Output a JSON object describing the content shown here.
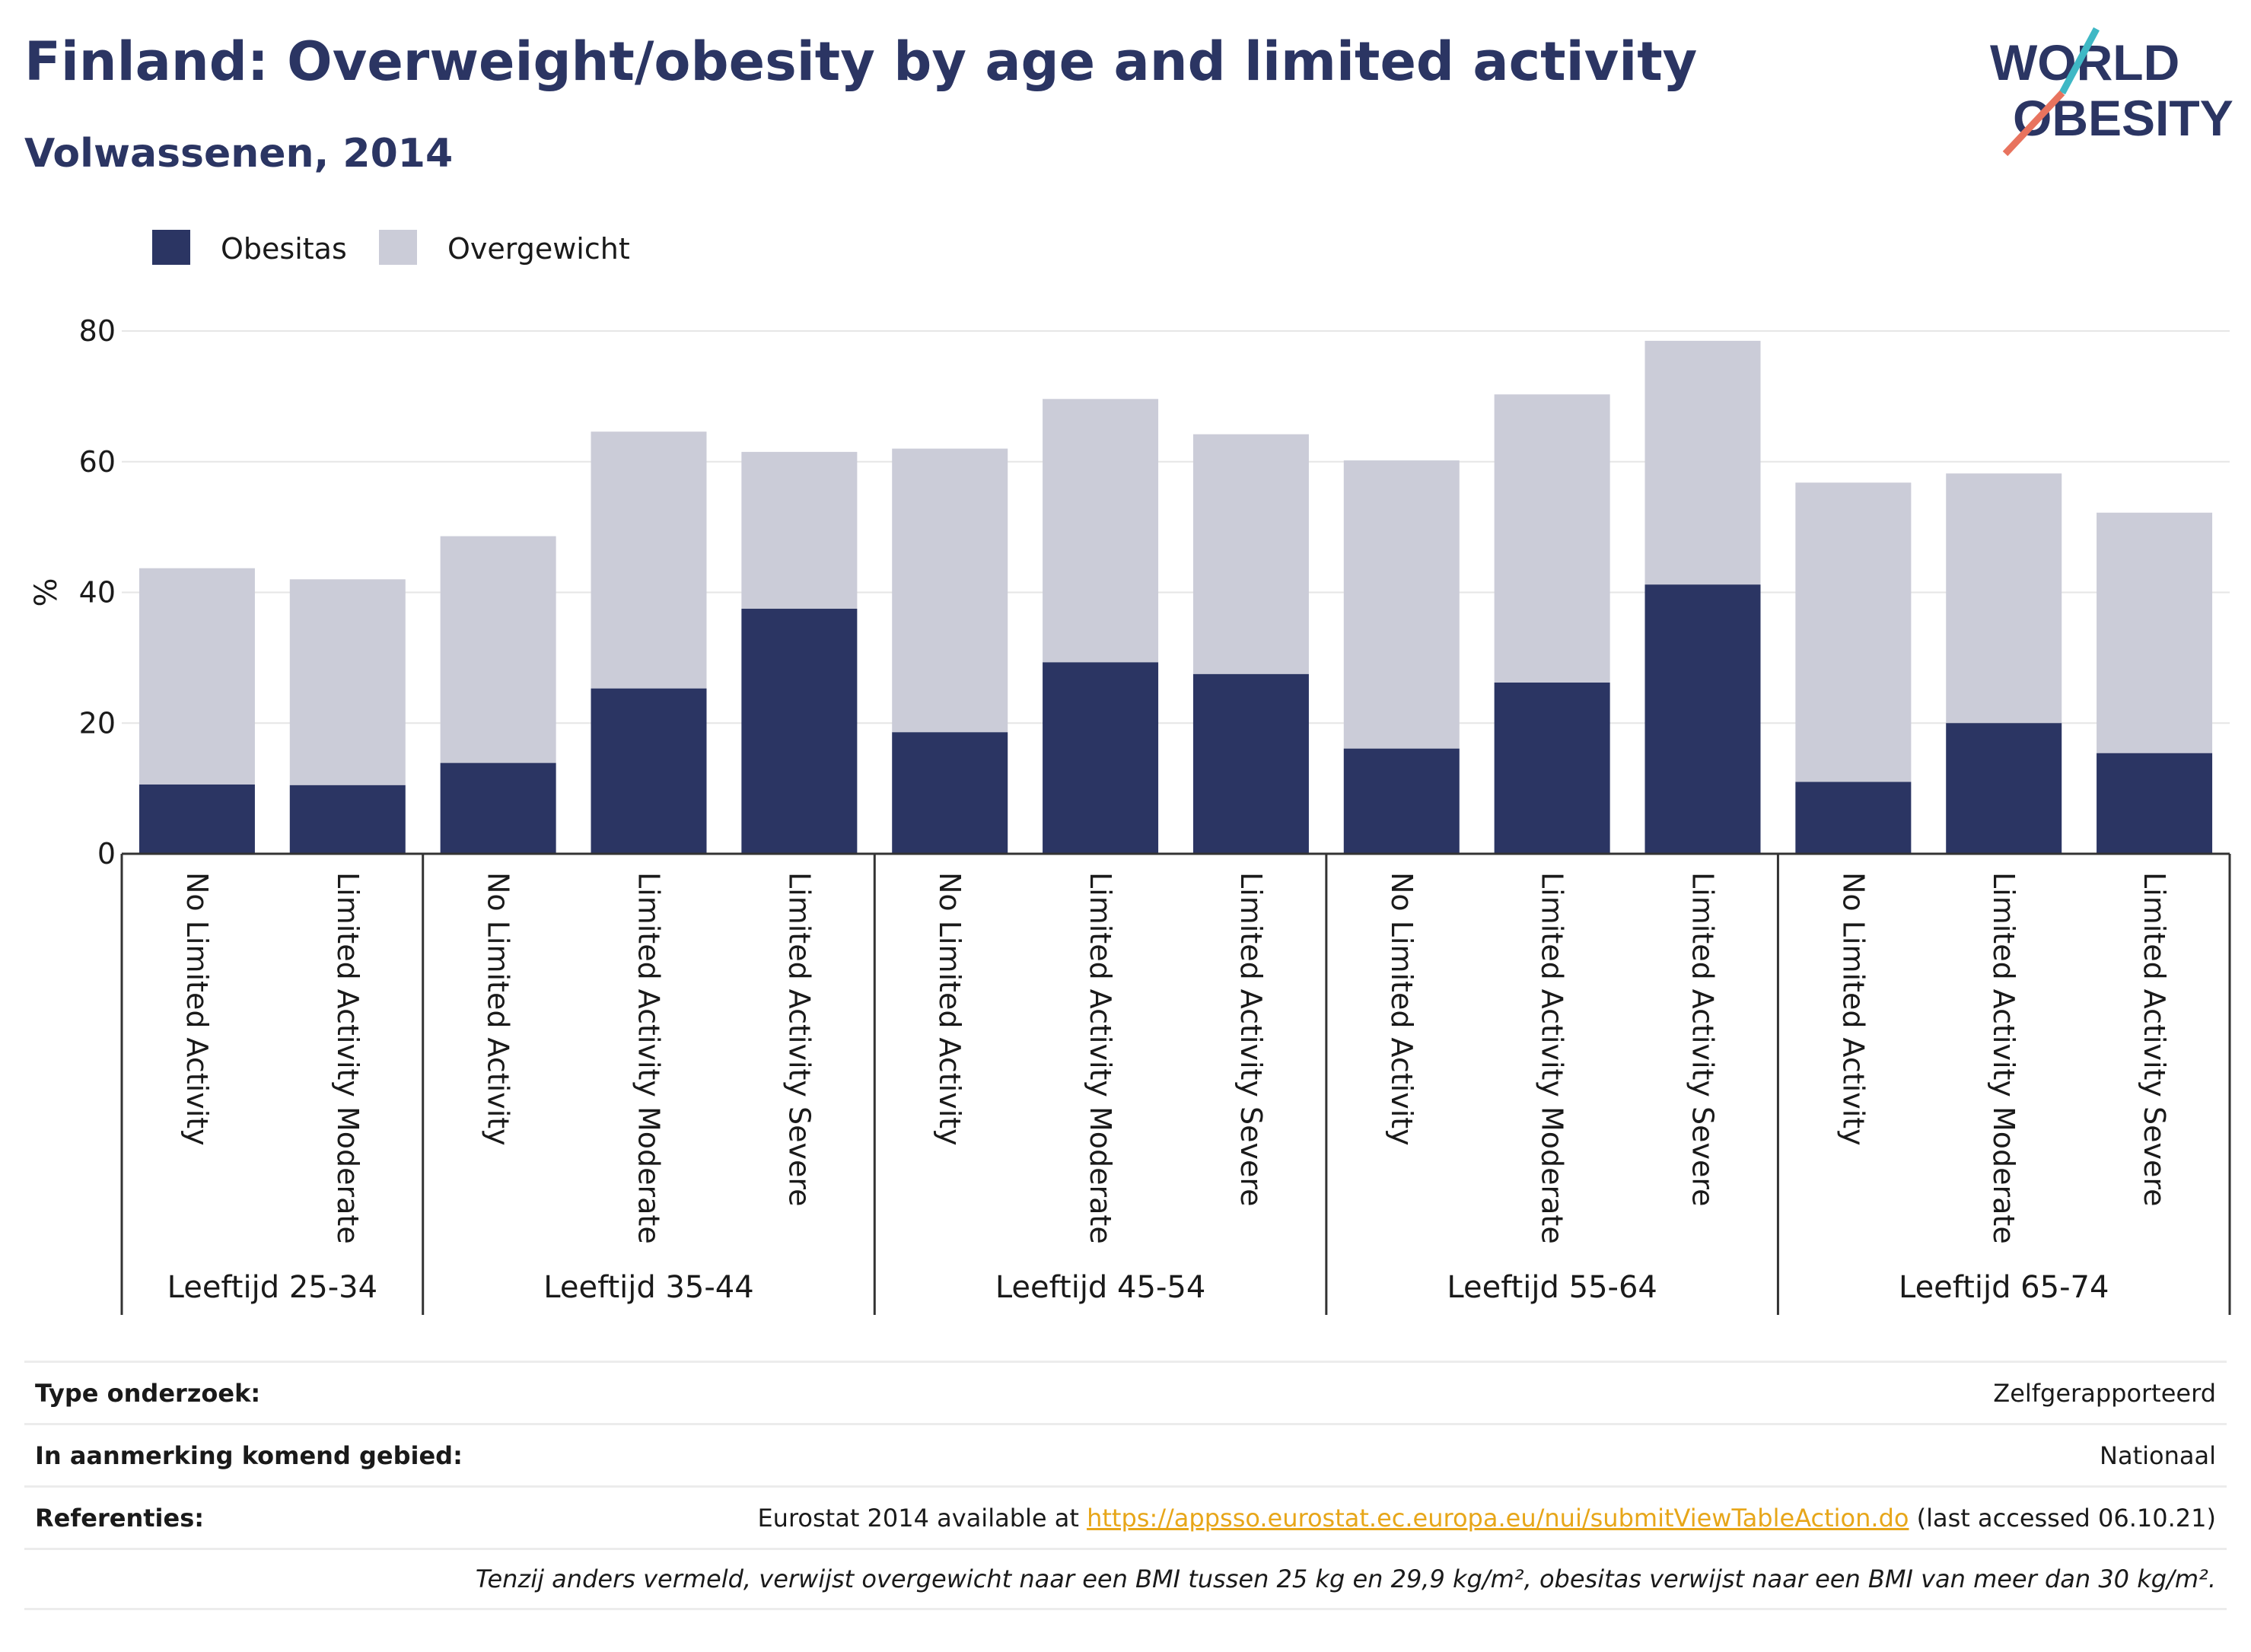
{
  "header": {
    "title": "Finland: Overweight/obesity by age and limited activity",
    "subtitle": "Volwassenen, 2014",
    "logo_line1": "WORLD",
    "logo_line2": "OBESITY"
  },
  "colors": {
    "obesity": "#2b3563",
    "overweight": "#cbccd8",
    "accent_title": "#2b3563",
    "link": "#e7a619",
    "logo_teal": "#3fb8c5",
    "logo_coral": "#e8735e"
  },
  "chart_data": {
    "type": "bar",
    "stacked": true,
    "ylabel": "%",
    "ylim": [
      0,
      80
    ],
    "yticks": [
      0,
      20,
      40,
      60,
      80
    ],
    "grid": true,
    "legend_position": "top-left",
    "groups": [
      {
        "label": "Leeftijd 25-34",
        "categories": [
          "No Limited Activity",
          "Limited Activity Moderate"
        ]
      },
      {
        "label": "Leeftijd 35-44",
        "categories": [
          "No Limited Activity",
          "Limited Activity Moderate",
          "Limited Activity Severe"
        ]
      },
      {
        "label": "Leeftijd 45-54",
        "categories": [
          "No Limited Activity",
          "Limited Activity Moderate",
          "Limited Activity Severe"
        ]
      },
      {
        "label": "Leeftijd 55-64",
        "categories": [
          "No Limited Activity",
          "Limited Activity Moderate",
          "Limited Activity Severe"
        ]
      },
      {
        "label": "Leeftijd 65-74",
        "categories": [
          "No Limited Activity",
          "Limited Activity Moderate",
          "Limited Activity Severe"
        ]
      }
    ],
    "series": [
      {
        "name": "Obesitas",
        "values": [
          10.6,
          10.5,
          13.9,
          25.3,
          37.5,
          18.6,
          29.3,
          27.5,
          16.1,
          26.2,
          41.2,
          11.0,
          20.0,
          15.4
        ]
      },
      {
        "name": "Overgewicht",
        "values": [
          33.1,
          31.5,
          34.7,
          39.3,
          24.0,
          43.4,
          40.3,
          36.7,
          44.1,
          44.1,
          37.3,
          45.8,
          38.2,
          36.8
        ]
      }
    ]
  },
  "info": {
    "survey_type_label": "Type onderzoek:",
    "survey_type_value": "Zelfgerapporteerd",
    "area_label": "In aanmerking komend gebied:",
    "area_value": "Nationaal",
    "references_label": "Referenties:",
    "references_prefix": "Eurostat 2014 available at ",
    "references_link": "https://appsso.eurostat.ec.europa.eu/nui/submitViewTableAction.do",
    "references_suffix": " (last accessed 06.10.21)",
    "note": "Tenzij anders vermeld, verwijst overgewicht naar een BMI tussen 25 kg en 29,9 kg/m², obesitas verwijst naar een BMI van meer dan 30 kg/m²."
  }
}
